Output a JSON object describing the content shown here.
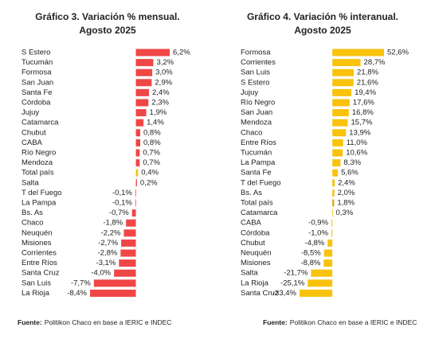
{
  "chart_data": [
    {
      "type": "bar",
      "orientation": "horizontal",
      "title": "Gráfico 3. Variación % mensual.",
      "subtitle": "Agosto 2025",
      "categories": [
        "S Estero",
        "Tucumán",
        "Formosa",
        "San Juan",
        "Santa Fe",
        "Córdoba",
        "Jujuy",
        "Catamarca",
        "Chubut",
        "CABA",
        "Río Negro",
        "Mendoza",
        "Total país",
        "Salta",
        "T del Fuego",
        "La Pampa",
        "Bs. As",
        "Chaco",
        "Neuquén",
        "Misiones",
        "Corrientes",
        "Entre Ríos",
        "Santa Cruz",
        "San Luis",
        "La Rioja"
      ],
      "values": [
        6.2,
        3.2,
        3.0,
        2.9,
        2.4,
        2.3,
        1.9,
        1.4,
        0.8,
        0.8,
        0.7,
        0.7,
        0.4,
        0.2,
        -0.1,
        -0.1,
        -0.7,
        -1.8,
        -2.2,
        -2.7,
        -2.8,
        -3.1,
        -4.0,
        -7.7,
        -8.4
      ],
      "value_labels": [
        "6,2%",
        "3,2%",
        "3,0%",
        "2,9%",
        "2,4%",
        "2,3%",
        "1,9%",
        "1,4%",
        "0,8%",
        "0,8%",
        "0,7%",
        "0,7%",
        "0,4%",
        "0,2%",
        "-0,1%",
        "-0,1%",
        "-0,7%",
        "-1,8%",
        "-2,2%",
        "-2,7%",
        "-2,8%",
        "-3,1%",
        "-4,0%",
        "-7,7%",
        "-8,4%"
      ],
      "colors": [
        "#f04646",
        "#f04646",
        "#f04646",
        "#f04646",
        "#f04646",
        "#f04646",
        "#f04646",
        "#f04646",
        "#f04646",
        "#f04646",
        "#f04646",
        "#f04646",
        "#f5c400",
        "#f04646",
        "#f04646",
        "#f04646",
        "#f04646",
        "#f04646",
        "#f04646",
        "#f04646",
        "#f04646",
        "#f04646",
        "#f04646",
        "#f04646",
        "#f04646"
      ],
      "source_label": "Fuente:",
      "source": "Politikon Chaco en base a IERIC e INDEC"
    },
    {
      "type": "bar",
      "orientation": "horizontal",
      "title": "Gráfico 4. Variación % interanual.",
      "subtitle": "Agosto 2025",
      "categories": [
        "Formosa",
        "Corrientes",
        "San Luis",
        "S Estero",
        "Jujuy",
        "Río Negro",
        "San Juan",
        "Mendoza",
        "Chaco",
        "Entre Ríos",
        "Tucumán",
        "La Pampa",
        "Santa Fe",
        "T del Fuego",
        "Bs. As",
        "Total país",
        "Catamarca",
        "CABA",
        "Córdoba",
        "Chubut",
        "Neuquén",
        "Misiones",
        "Salta",
        "La Rioja",
        "Santa Cruz"
      ],
      "values": [
        52.6,
        28.7,
        21.8,
        21.6,
        19.4,
        17.6,
        16.8,
        15.7,
        13.9,
        11.0,
        10.6,
        8.3,
        5.6,
        2.4,
        2.0,
        1.8,
        0.3,
        -0.9,
        -1.0,
        -4.8,
        -8.5,
        -8.8,
        -21.7,
        -25.1,
        -33.4
      ],
      "value_labels": [
        "52,6%",
        "28,7%",
        "21,8%",
        "21,6%",
        "19,4%",
        "17,6%",
        "16,8%",
        "15,7%",
        "13,9%",
        "11,0%",
        "10,6%",
        "8,3%",
        "5,6%",
        "2,4%",
        "2,0%",
        "1,8%",
        "0,3%",
        "-0,9%",
        "-1,0%",
        "-4,8%",
        "-8,5%",
        "-8,8%",
        "-21,7%",
        "-25,1%",
        "-33,4%"
      ],
      "colors": [
        "#f9c20c",
        "#f9c20c",
        "#f9c20c",
        "#f9c20c",
        "#f9c20c",
        "#f9c20c",
        "#f9c20c",
        "#f9c20c",
        "#f9c20c",
        "#f9c20c",
        "#f9c20c",
        "#f9c20c",
        "#f9c20c",
        "#f9c20c",
        "#f9c20c",
        "#e0a800",
        "#f9c20c",
        "#f9c20c",
        "#f9c20c",
        "#f9c20c",
        "#f9c20c",
        "#f9c20c",
        "#f9c20c",
        "#f9c20c",
        "#f9c20c"
      ],
      "source_label": "Fuente:",
      "source": "Politikon Chaco en base a IERIC e INDEC"
    }
  ]
}
